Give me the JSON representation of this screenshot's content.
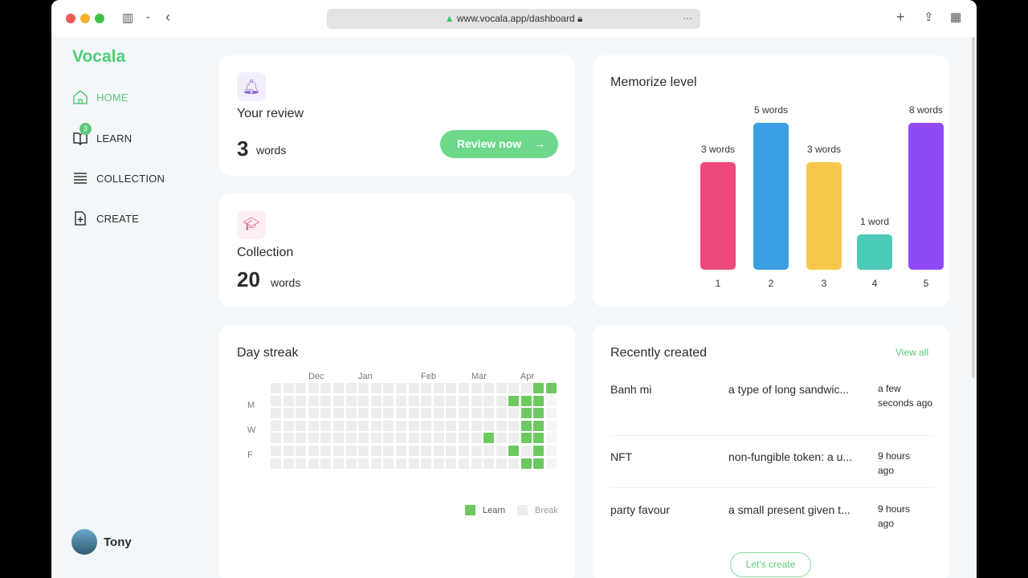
{
  "browser": {
    "url": "www.vocala.app/dashboard"
  },
  "sidebar": {
    "logo": "Vocala",
    "items": [
      {
        "label": "HOME"
      },
      {
        "label": "LEARN",
        "badge": "3"
      },
      {
        "label": "COLLECTION"
      },
      {
        "label": "CREATE"
      }
    ],
    "user": "Tony"
  },
  "review": {
    "title": "Your review",
    "count": "3",
    "unit": "words",
    "button": "Review now"
  },
  "collection": {
    "title": "Collection",
    "count": "20",
    "unit": "words"
  },
  "chart_data": {
    "type": "bar",
    "title": "Memorize level",
    "categories": [
      "1",
      "2",
      "3",
      "4",
      "5"
    ],
    "values": [
      3,
      5,
      3,
      1,
      8
    ],
    "labels": [
      "3 words",
      "5 words",
      "3 words",
      "1 word",
      "8 words"
    ],
    "colors": [
      "#ee4a7d",
      "#3a9fe3",
      "#f8c84d",
      "#4ccab8",
      "#8f4af5"
    ]
  },
  "streak": {
    "title": "Day streak",
    "months": [
      "Dec",
      "Jan",
      "Feb",
      "Mar",
      "Apr"
    ],
    "days": [
      "M",
      "W",
      "F"
    ],
    "legend_learn": "Learn",
    "legend_break": "Break",
    "active": [
      [
        17,
        4
      ],
      [
        19,
        1
      ],
      [
        19,
        5
      ],
      [
        20,
        1
      ],
      [
        20,
        2
      ],
      [
        20,
        3
      ],
      [
        20,
        4
      ],
      [
        20,
        6
      ],
      [
        21,
        0
      ],
      [
        21,
        1
      ],
      [
        21,
        2
      ],
      [
        21,
        3
      ],
      [
        21,
        4
      ],
      [
        21,
        5
      ],
      [
        21,
        6
      ],
      [
        22,
        0
      ]
    ]
  },
  "recent": {
    "title": "Recently created",
    "view_all": "View all",
    "button": "Let's create",
    "items": [
      {
        "word": "Banh mi",
        "meaning": "a type of long sandwic...",
        "time": "a few seconds ago"
      },
      {
        "word": "NFT",
        "meaning": "non-fungible token: a u...",
        "time": "9 hours ago"
      },
      {
        "word": "party favour",
        "meaning": "a small present given t...",
        "time": "9 hours ago"
      }
    ]
  }
}
